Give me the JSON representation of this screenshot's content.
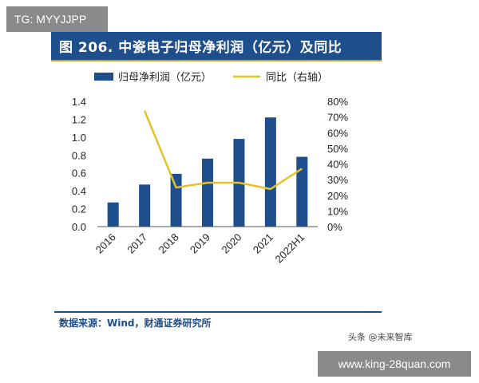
{
  "watermarks": {
    "top": "TG: MYYJJPP",
    "bottom": "www.king-28quan.com"
  },
  "chart_title": "图 206. 中瓷电子归母净利润（亿元）及同比",
  "source": "数据来源：Wind，财通证券研究所",
  "credit": "头条 @未来智库",
  "colors": {
    "bar": "#1f4e8c",
    "line": "#e6c229",
    "title_bg": "#1f4e8c"
  },
  "chart_data": {
    "type": "bar",
    "categories": [
      "2016",
      "2017",
      "2018",
      "2019",
      "2020",
      "2021",
      "2022H1"
    ],
    "series": [
      {
        "name": "归母净利润（亿元）",
        "type": "bar",
        "axis": "left",
        "values": [
          0.27,
          0.47,
          0.59,
          0.76,
          0.98,
          1.22,
          0.78
        ]
      },
      {
        "name": "同比（右轴）",
        "type": "line",
        "axis": "right",
        "values": [
          null,
          74,
          25,
          28,
          28,
          24,
          37
        ]
      }
    ],
    "y_left": {
      "ticks": [
        "0.0",
        "0.2",
        "0.4",
        "0.6",
        "0.8",
        "1.0",
        "1.2",
        "1.4"
      ],
      "range": [
        0,
        1.4
      ]
    },
    "y_right": {
      "ticks": [
        "0%",
        "10%",
        "20%",
        "30%",
        "40%",
        "50%",
        "60%",
        "70%",
        "80%"
      ],
      "range": [
        0,
        80
      ]
    },
    "legend_position": "top",
    "grid": false
  }
}
